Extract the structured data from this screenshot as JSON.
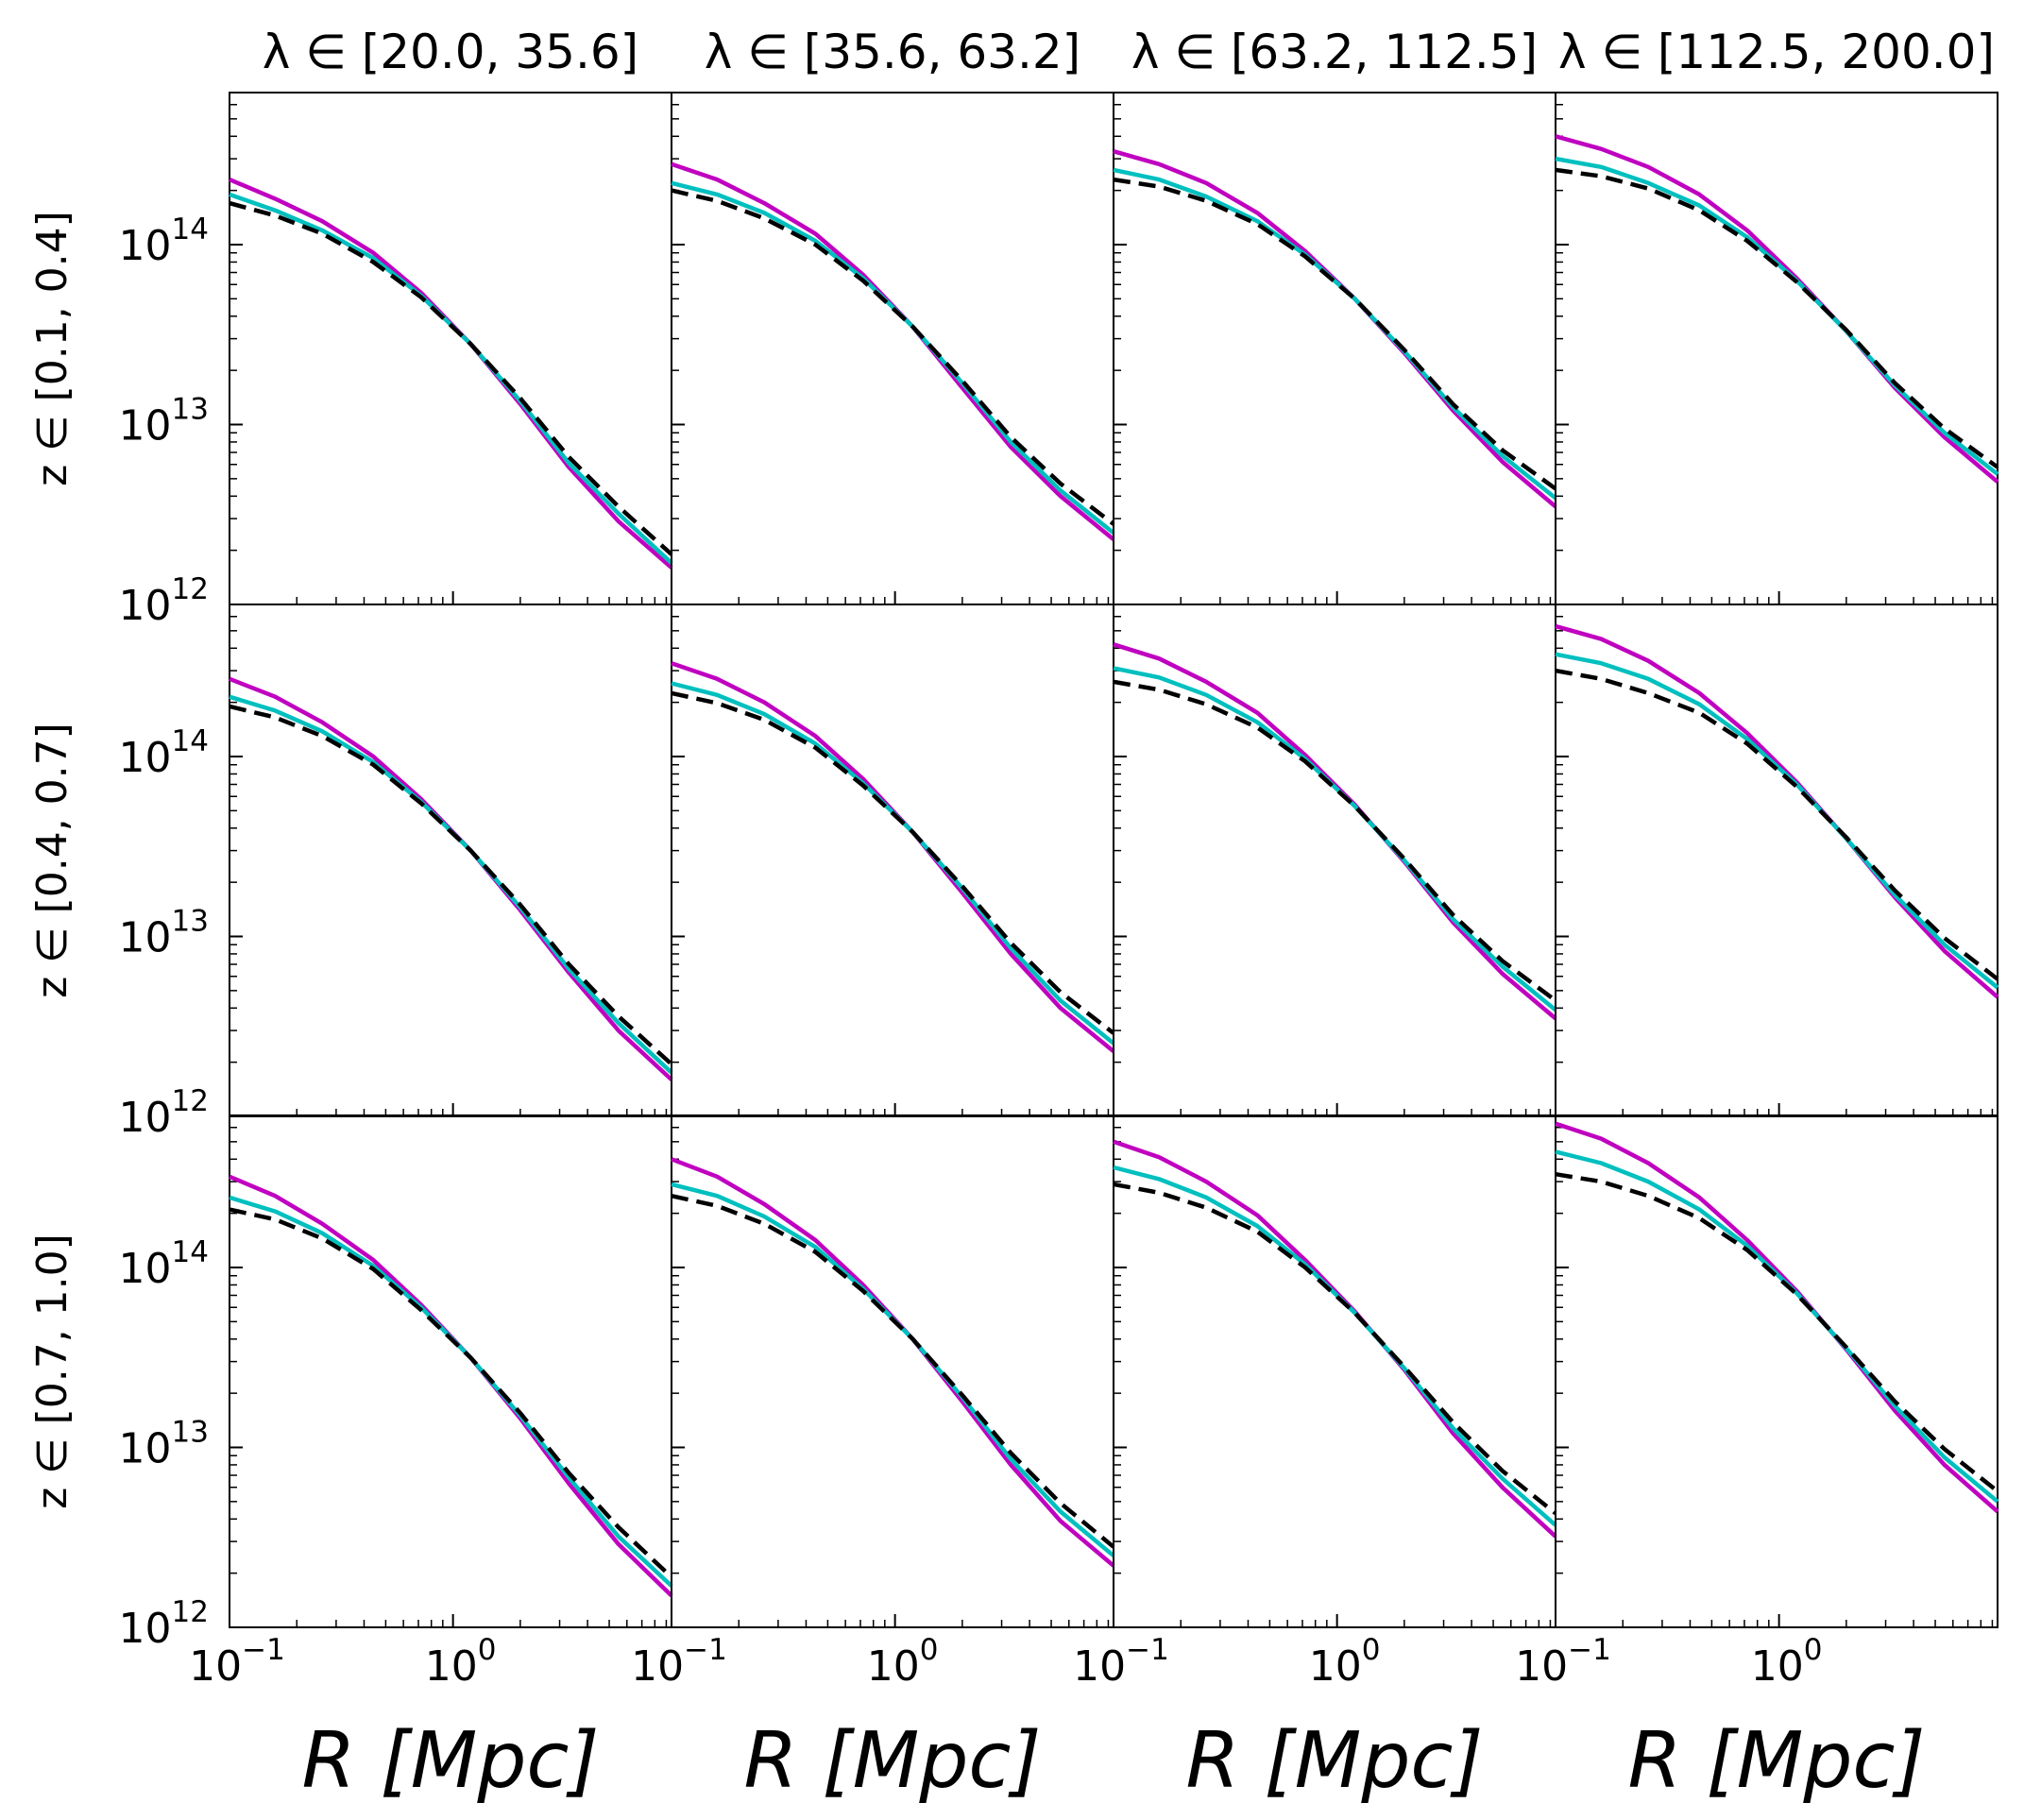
{
  "chart_data": {
    "type": "line",
    "layout": "3x4 small multiples, shared axes",
    "xscale": "log",
    "yscale": "log",
    "xlim": [
      0.1,
      9.5
    ],
    "ylim": [
      1000000000000.0,
      700000000000000.0
    ],
    "grid": false,
    "legend": "none",
    "xticks": [
      {
        "value": 0.1,
        "base": "10",
        "exp": "−1"
      },
      {
        "value": 1,
        "base": "10",
        "exp": "0"
      }
    ],
    "yticks": [
      {
        "value": 1000000000000.0,
        "base": "10",
        "exp": "12"
      },
      {
        "value": 10000000000000.0,
        "base": "10",
        "exp": "13"
      },
      {
        "value": 100000000000000.0,
        "base": "10",
        "exp": "14"
      }
    ],
    "xlabel": "R [Mpc]",
    "col_titles": [
      "λ ∈ [20.0, 35.6]",
      "λ ∈ [35.6, 63.2]",
      "λ ∈ [63.2, 112.5]",
      "λ ∈ [112.5, 200.0]"
    ],
    "row_labels": [
      "z ∈ [0.1, 0.4]",
      "z ∈ [0.4, 0.7]",
      "z ∈ [0.7, 1.0]"
    ],
    "series_styles": [
      {
        "color": "#c000c0",
        "dash": "solid"
      },
      {
        "color": "#00bfbf",
        "dash": "solid"
      },
      {
        "color": "#000000",
        "dash": "dashed"
      }
    ],
    "x": [
      0.1,
      0.16,
      0.26,
      0.44,
      0.72,
      1.2,
      2.0,
      3.3,
      5.5,
      9.5
    ],
    "panels": [
      {
        "row": 0,
        "col": 0,
        "series": [
          {
            "values": [
              230000000000000.0,
              180000000000000.0,
              135000000000000.0,
              90000000000000.0,
              54000000000000.0,
              28000000000000.0,
              13000000000000.0,
              5800000000000.0,
              2900000000000.0,
              1600000000000.0
            ]
          },
          {
            "values": [
              190000000000000.0,
              155000000000000.0,
              120000000000000.0,
              84000000000000.0,
              52000000000000.0,
              28000000000000.0,
              13500000000000.0,
              6100000000000.0,
              3200000000000.0,
              1700000000000.0
            ]
          },
          {
            "values": [
              170000000000000.0,
              145000000000000.0,
              115000000000000.0,
              80000000000000.0,
              51000000000000.0,
              28000000000000.0,
              14000000000000.0,
              6600000000000.0,
              3500000000000.0,
              1900000000000.0
            ]
          }
        ]
      },
      {
        "row": 0,
        "col": 1,
        "series": [
          {
            "values": [
              280000000000000.0,
              230000000000000.0,
              170000000000000.0,
              115000000000000.0,
              68000000000000.0,
              35000000000000.0,
              16000000000000.0,
              7500000000000.0,
              4000000000000.0,
              2300000000000.0
            ]
          },
          {
            "values": [
              220000000000000.0,
              190000000000000.0,
              150000000000000.0,
              105000000000000.0,
              65000000000000.0,
              35000000000000.0,
              17000000000000.0,
              8000000000000.0,
              4300000000000.0,
              2500000000000.0
            ]
          },
          {
            "values": [
              200000000000000.0,
              175000000000000.0,
              140000000000000.0,
              100000000000000.0,
              63000000000000.0,
              35000000000000.0,
              17500000000000.0,
              8500000000000.0,
              4700000000000.0,
              2800000000000.0
            ]
          }
        ]
      },
      {
        "row": 0,
        "col": 2,
        "series": [
          {
            "values": [
              330000000000000.0,
              280000000000000.0,
              220000000000000.0,
              150000000000000.0,
              92000000000000.0,
              50000000000000.0,
              25000000000000.0,
              12000000000000.0,
              6200000000000.0,
              3500000000000.0
            ]
          },
          {
            "values": [
              260000000000000.0,
              230000000000000.0,
              185000000000000.0,
              135000000000000.0,
              88000000000000.0,
              50000000000000.0,
              25500000000000.0,
              12500000000000.0,
              6700000000000.0,
              3900000000000.0
            ]
          },
          {
            "values": [
              230000000000000.0,
              210000000000000.0,
              175000000000000.0,
              130000000000000.0,
              86000000000000.0,
              50000000000000.0,
              26000000000000.0,
              13000000000000.0,
              7200000000000.0,
              4400000000000.0
            ]
          }
        ]
      },
      {
        "row": 0,
        "col": 3,
        "series": [
          {
            "values": [
              400000000000000.0,
              340000000000000.0,
              270000000000000.0,
              190000000000000.0,
              120000000000000.0,
              65000000000000.0,
              33000000000000.0,
              16000000000000.0,
              8500000000000.0,
              4800000000000.0
            ]
          },
          {
            "values": [
              300000000000000.0,
              270000000000000.0,
              220000000000000.0,
              165000000000000.0,
              110000000000000.0,
              63000000000000.0,
              33000000000000.0,
              16500000000000.0,
              9000000000000.0,
              5300000000000.0
            ]
          },
          {
            "values": [
              260000000000000.0,
              240000000000000.0,
              205000000000000.0,
              155000000000000.0,
              105000000000000.0,
              62000000000000.0,
              33500000000000.0,
              17000000000000.0,
              9500000000000.0,
              5800000000000.0
            ]
          }
        ]
      },
      {
        "row": 1,
        "col": 0,
        "series": [
          {
            "values": [
              270000000000000.0,
              215000000000000.0,
              155000000000000.0,
              100000000000000.0,
              58000000000000.0,
              30000000000000.0,
              14000000000000.0,
              6300000000000.0,
              3000000000000.0,
              1600000000000.0
            ]
          },
          {
            "values": [
              215000000000000.0,
              180000000000000.0,
              138000000000000.0,
              93000000000000.0,
              56000000000000.0,
              30000000000000.0,
              14500000000000.0,
              6600000000000.0,
              3300000000000.0,
              1750000000000.0
            ]
          },
          {
            "values": [
              190000000000000.0,
              165000000000000.0,
              130000000000000.0,
              90000000000000.0,
              55000000000000.0,
              30000000000000.0,
              15000000000000.0,
              7000000000000.0,
              3600000000000.0,
              1950000000000.0
            ]
          }
        ]
      },
      {
        "row": 1,
        "col": 1,
        "series": [
          {
            "values": [
              330000000000000.0,
              270000000000000.0,
              200000000000000.0,
              130000000000000.0,
              75000000000000.0,
              38000000000000.0,
              17500000000000.0,
              8000000000000.0,
              4000000000000.0,
              2300000000000.0
            ]
          },
          {
            "values": [
              255000000000000.0,
              220000000000000.0,
              172000000000000.0,
              118000000000000.0,
              71000000000000.0,
              38000000000000.0,
              18500000000000.0,
              8600000000000.0,
              4400000000000.0,
              2550000000000.0
            ]
          },
          {
            "values": [
              225000000000000.0,
              198000000000000.0,
              160000000000000.0,
              112000000000000.0,
              69000000000000.0,
              38000000000000.0,
              19000000000000.0,
              9200000000000.0,
              4900000000000.0,
              2900000000000.0
            ]
          }
        ]
      },
      {
        "row": 1,
        "col": 2,
        "series": [
          {
            "values": [
              420000000000000.0,
              350000000000000.0,
              260000000000000.0,
              175000000000000.0,
              102000000000000.0,
              54000000000000.0,
              26000000000000.0,
              12000000000000.0,
              6200000000000.0,
              3500000000000.0
            ]
          },
          {
            "values": [
              310000000000000.0,
              275000000000000.0,
              220000000000000.0,
              155000000000000.0,
              97000000000000.0,
              53000000000000.0,
              26500000000000.0,
              12500000000000.0,
              6800000000000.0,
              3900000000000.0
            ]
          },
          {
            "values": [
              260000000000000.0,
              235000000000000.0,
              195000000000000.0,
              145000000000000.0,
              94000000000000.0,
              53000000000000.0,
              27000000000000.0,
              13200000000000.0,
              7300000000000.0,
              4400000000000.0
            ]
          }
        ]
      },
      {
        "row": 1,
        "col": 3,
        "series": [
          {
            "values": [
              530000000000000.0,
              450000000000000.0,
              340000000000000.0,
              225000000000000.0,
              135000000000000.0,
              72000000000000.0,
              35000000000000.0,
              16500000000000.0,
              8300000000000.0,
              4600000000000.0
            ]
          },
          {
            "values": [
              370000000000000.0,
              330000000000000.0,
              270000000000000.0,
              195000000000000.0,
              125000000000000.0,
              70000000000000.0,
              35000000000000.0,
              17000000000000.0,
              9000000000000.0,
              5200000000000.0
            ]
          },
          {
            "values": [
              300000000000000.0,
              270000000000000.0,
              225000000000000.0,
              175000000000000.0,
              118000000000000.0,
              68000000000000.0,
              35500000000000.0,
              18000000000000.0,
              9800000000000.0,
              5800000000000.0
            ]
          }
        ]
      },
      {
        "row": 2,
        "col": 0,
        "series": [
          {
            "values": [
              320000000000000.0,
              250000000000000.0,
              175000000000000.0,
              110000000000000.0,
              62000000000000.0,
              31500000000000.0,
              14500000000000.0,
              6300000000000.0,
              2900000000000.0,
              1500000000000.0
            ]
          },
          {
            "values": [
              245000000000000.0,
              205000000000000.0,
              155000000000000.0,
              102000000000000.0,
              60000000000000.0,
              31500000000000.0,
              15000000000000.0,
              6800000000000.0,
              3200000000000.0,
              1700000000000.0
            ]
          },
          {
            "values": [
              210000000000000.0,
              185000000000000.0,
              145000000000000.0,
              98000000000000.0,
              58000000000000.0,
              31500000000000.0,
              15500000000000.0,
              7200000000000.0,
              3600000000000.0,
              1900000000000.0
            ]
          }
        ]
      },
      {
        "row": 2,
        "col": 1,
        "series": [
          {
            "values": [
              400000000000000.0,
              320000000000000.0,
              225000000000000.0,
              142000000000000.0,
              80000000000000.0,
              40000000000000.0,
              18000000000000.0,
              8000000000000.0,
              3900000000000.0,
              2200000000000.0
            ]
          },
          {
            "values": [
              290000000000000.0,
              250000000000000.0,
              192000000000000.0,
              130000000000000.0,
              76000000000000.0,
              40000000000000.0,
              19000000000000.0,
              8600000000000.0,
              4400000000000.0,
              2500000000000.0
            ]
          },
          {
            "values": [
              250000000000000.0,
              220000000000000.0,
              175000000000000.0,
              122000000000000.0,
              74000000000000.0,
              40000000000000.0,
              19500000000000.0,
              9300000000000.0,
              4900000000000.0,
              2800000000000.0
            ]
          }
        ]
      },
      {
        "row": 2,
        "col": 2,
        "series": [
          {
            "values": [
              500000000000000.0,
              410000000000000.0,
              300000000000000.0,
              195000000000000.0,
              110000000000000.0,
              57000000000000.0,
              27000000000000.0,
              12000000000000.0,
              6000000000000.0,
              3200000000000.0
            ]
          },
          {
            "values": [
              360000000000000.0,
              310000000000000.0,
              245000000000000.0,
              170000000000000.0,
              104000000000000.0,
              56000000000000.0,
              27500000000000.0,
              12800000000000.0,
              6700000000000.0,
              3700000000000.0
            ]
          },
          {
            "values": [
              290000000000000.0,
              260000000000000.0,
              215000000000000.0,
              158000000000000.0,
              100000000000000.0,
              56000000000000.0,
              28000000000000.0,
              13800000000000.0,
              7400000000000.0,
              4300000000000.0
            ]
          }
        ]
      },
      {
        "row": 2,
        "col": 3,
        "series": [
          {
            "values": [
              630000000000000.0,
              520000000000000.0,
              380000000000000.0,
              245000000000000.0,
              142000000000000.0,
              74000000000000.0,
              35000000000000.0,
              16000000000000.0,
              8000000000000.0,
              4400000000000.0
            ]
          },
          {
            "values": [
              440000000000000.0,
              380000000000000.0,
              300000000000000.0,
              210000000000000.0,
              132000000000000.0,
              72000000000000.0,
              35500000000000.0,
              17000000000000.0,
              8800000000000.0,
              5000000000000.0
            ]
          },
          {
            "values": [
              330000000000000.0,
              300000000000000.0,
              250000000000000.0,
              188000000000000.0,
              125000000000000.0,
              71000000000000.0,
              36000000000000.0,
              18000000000000.0,
              9800000000000.0,
              5700000000000.0
            ]
          }
        ]
      }
    ]
  }
}
